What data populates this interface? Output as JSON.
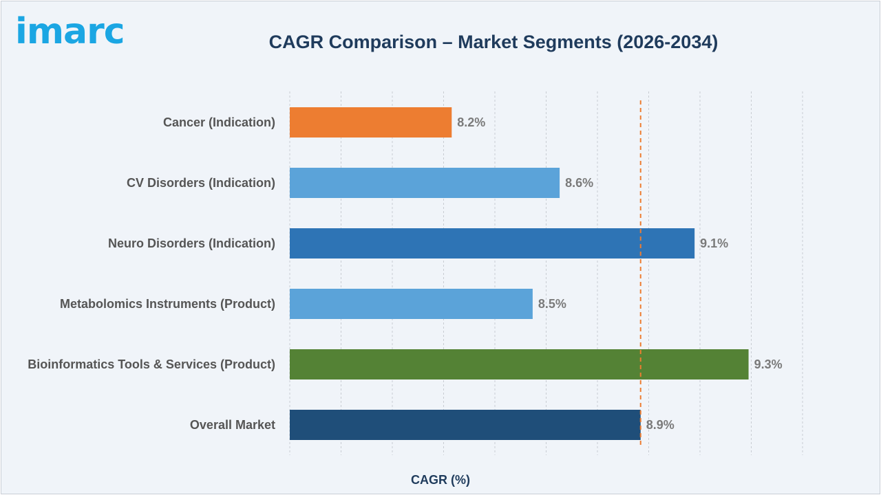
{
  "logo": "imarc",
  "chart_data": {
    "type": "bar",
    "orientation": "horizontal",
    "title": "CAGR Comparison – Market Segments (2026-2034)",
    "xlabel": "CAGR (%)",
    "categories": [
      "Cancer (Indication)",
      "CV Disorders (Indication)",
      "Neuro Disorders (Indication)",
      "Metabolomics Instruments (Product)",
      "Bioinformatics Tools & Services (Product)",
      "Overall Market"
    ],
    "values": [
      8.2,
      8.6,
      9.1,
      8.5,
      9.3,
      8.9
    ],
    "value_labels": [
      "8.2%",
      "8.6%",
      "9.1%",
      "8.5%",
      "9.3%",
      "8.9%"
    ],
    "colors": [
      "#ed7d31",
      "#5ba3d9",
      "#2e74b5",
      "#5ba3d9",
      "#548235",
      "#1f4e79"
    ],
    "xlim": [
      7.6,
      9.5
    ],
    "grid_step": 0.2,
    "reference_line": {
      "value": 8.9,
      "color": "#ed7d31",
      "style": "dashed"
    },
    "grid": true
  }
}
